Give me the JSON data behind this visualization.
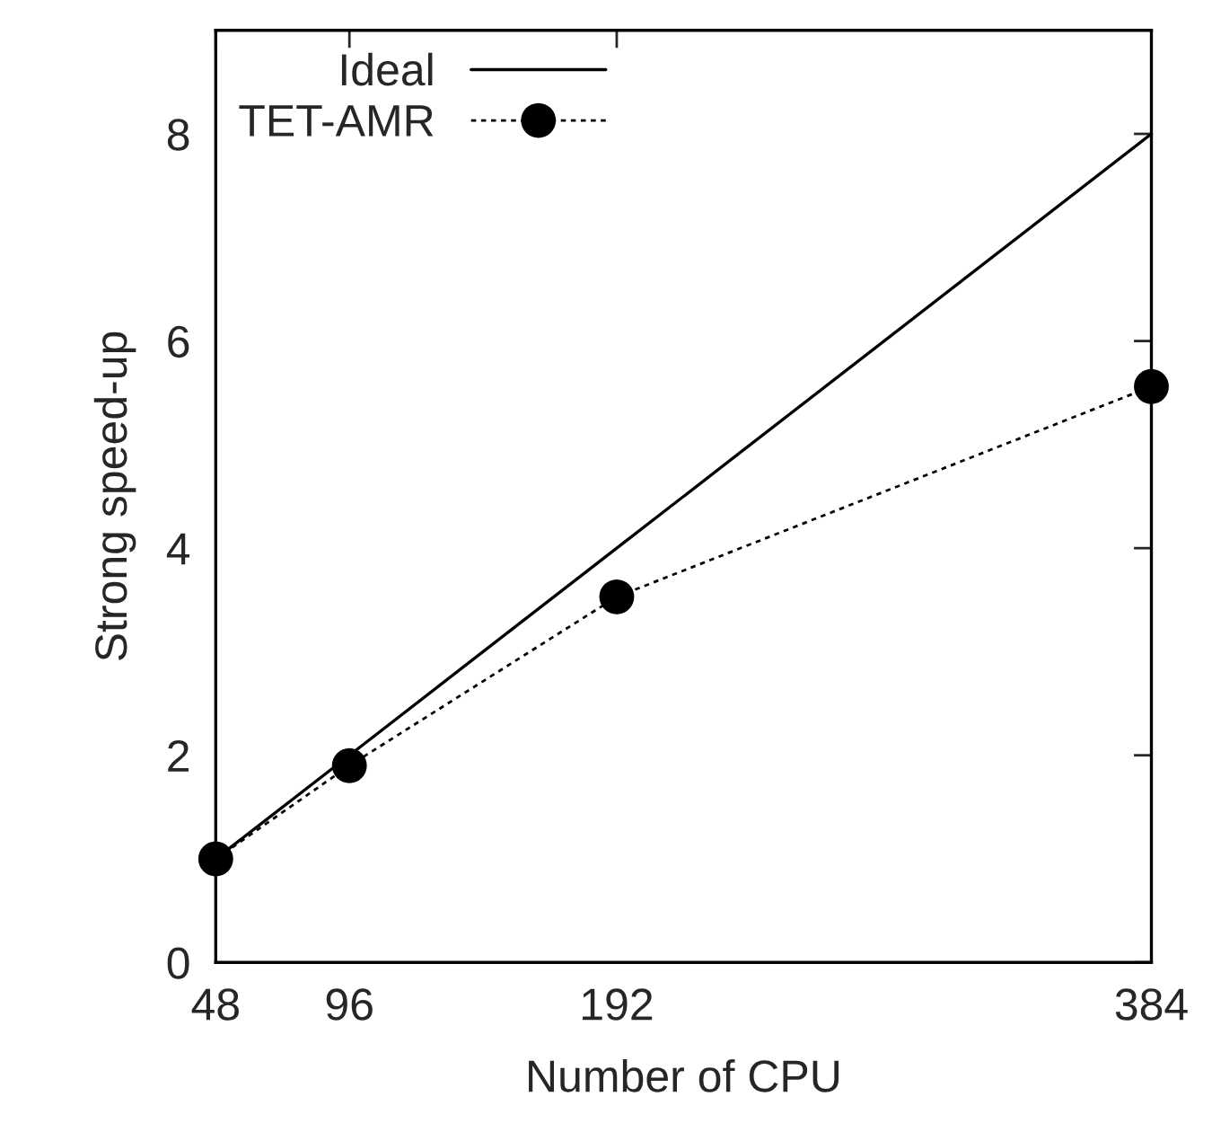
{
  "chart_data": {
    "type": "line",
    "xlabel": "Number of CPU",
    "ylabel": "Strong speed-up",
    "xlim": [
      48,
      384
    ],
    "xticks": [
      48,
      96,
      192,
      384
    ],
    "ylim": [
      0,
      9
    ],
    "yticks": [
      0,
      2,
      4,
      6,
      8
    ],
    "legend": "top left",
    "grid": false,
    "series": [
      {
        "name": "Ideal",
        "color": "#000000",
        "x": [
          48,
          96,
          192,
          384
        ],
        "values": [
          1,
          2,
          4,
          8
        ],
        "line_style": "solid",
        "marker": "none"
      },
      {
        "name": "TET-AMR",
        "color": "#000000",
        "x": [
          48,
          96,
          192,
          384
        ],
        "values": [
          1.0,
          1.9,
          3.53,
          5.56
        ],
        "line_style": "dotted",
        "marker": "circle"
      }
    ]
  }
}
